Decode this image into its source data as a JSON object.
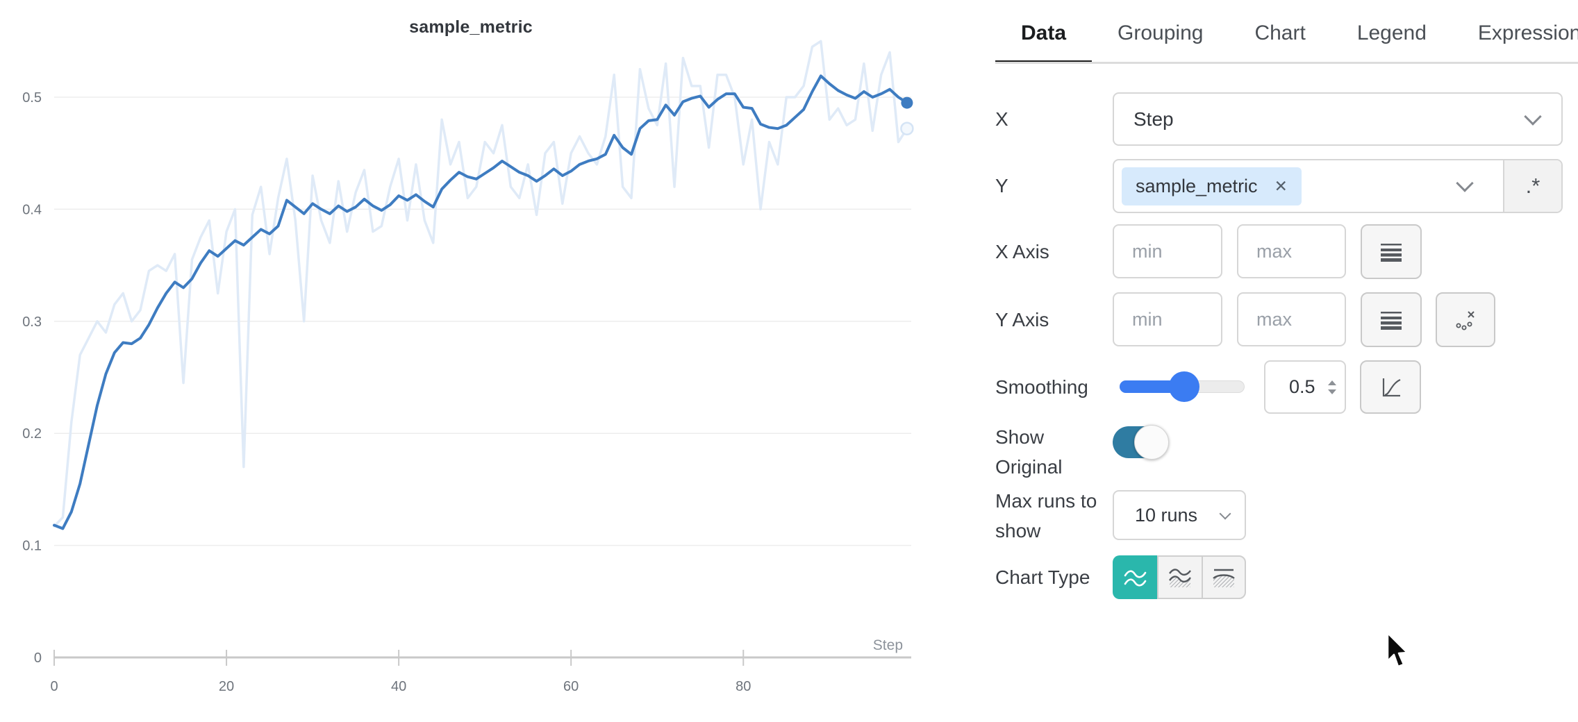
{
  "chart_data": {
    "type": "line",
    "title": "sample_metric",
    "xlabel": "Step",
    "ylabel": "",
    "x_start": 0,
    "x_step": 1,
    "x_ticks": [
      0,
      20,
      40,
      60,
      80
    ],
    "y_ticks": [
      0,
      0.1,
      0.2,
      0.3,
      0.4,
      0.5
    ],
    "xlim": [
      0,
      99
    ],
    "ylim": [
      0,
      0.562
    ],
    "grid": "horizontal",
    "legend": "none",
    "series": [
      {
        "name": "sample_metric (original)",
        "role": "original",
        "color": "#dfeaf7",
        "end_marker": "ring",
        "values": [
          0.117,
          0.125,
          0.21,
          0.27,
          0.285,
          0.3,
          0.29,
          0.315,
          0.325,
          0.3,
          0.31,
          0.345,
          0.35,
          0.345,
          0.36,
          0.245,
          0.355,
          0.375,
          0.39,
          0.325,
          0.38,
          0.4,
          0.17,
          0.395,
          0.42,
          0.36,
          0.41,
          0.445,
          0.39,
          0.3,
          0.43,
          0.39,
          0.37,
          0.425,
          0.38,
          0.415,
          0.435,
          0.38,
          0.385,
          0.42,
          0.445,
          0.39,
          0.44,
          0.39,
          0.37,
          0.48,
          0.44,
          0.46,
          0.41,
          0.42,
          0.46,
          0.45,
          0.475,
          0.42,
          0.41,
          0.44,
          0.395,
          0.45,
          0.46,
          0.405,
          0.45,
          0.465,
          0.45,
          0.44,
          0.465,
          0.52,
          0.42,
          0.41,
          0.525,
          0.49,
          0.475,
          0.53,
          0.42,
          0.535,
          0.51,
          0.51,
          0.455,
          0.52,
          0.52,
          0.5,
          0.44,
          0.48,
          0.4,
          0.46,
          0.44,
          0.5,
          0.5,
          0.51,
          0.545,
          0.55,
          0.48,
          0.49,
          0.475,
          0.48,
          0.53,
          0.47,
          0.52,
          0.54,
          0.46,
          0.472
        ]
      },
      {
        "name": "sample_metric (smoothed)",
        "role": "smoothed",
        "color": "#3e7cc1",
        "end_marker": "dot",
        "values": [
          0.118,
          0.115,
          0.13,
          0.155,
          0.19,
          0.225,
          0.253,
          0.272,
          0.281,
          0.28,
          0.285,
          0.297,
          0.312,
          0.325,
          0.335,
          0.33,
          0.338,
          0.352,
          0.363,
          0.358,
          0.365,
          0.372,
          0.368,
          0.375,
          0.382,
          0.378,
          0.385,
          0.408,
          0.402,
          0.396,
          0.405,
          0.4,
          0.396,
          0.403,
          0.398,
          0.402,
          0.409,
          0.403,
          0.399,
          0.404,
          0.412,
          0.408,
          0.413,
          0.407,
          0.402,
          0.418,
          0.426,
          0.433,
          0.429,
          0.427,
          0.432,
          0.437,
          0.443,
          0.438,
          0.433,
          0.43,
          0.425,
          0.43,
          0.436,
          0.43,
          0.434,
          0.44,
          0.443,
          0.445,
          0.449,
          0.466,
          0.455,
          0.449,
          0.472,
          0.479,
          0.48,
          0.493,
          0.484,
          0.496,
          0.499,
          0.501,
          0.491,
          0.498,
          0.503,
          0.503,
          0.491,
          0.49,
          0.476,
          0.473,
          0.472,
          0.475,
          0.482,
          0.489,
          0.505,
          0.519,
          0.512,
          0.506,
          0.502,
          0.499,
          0.505,
          0.5,
          0.503,
          0.507,
          0.5,
          0.495
        ]
      }
    ]
  },
  "panel": {
    "tabs": [
      {
        "label": "Data",
        "active": true
      },
      {
        "label": "Grouping",
        "active": false
      },
      {
        "label": "Chart",
        "active": false
      },
      {
        "label": "Legend",
        "active": false
      },
      {
        "label": "Expressions",
        "active": false
      }
    ],
    "rows": {
      "x": {
        "label": "X",
        "value": "Step"
      },
      "y": {
        "label": "Y",
        "selected": "sample_metric",
        "regex_label": ".*"
      },
      "x_axis": {
        "label": "X Axis",
        "min_placeholder": "min",
        "max_placeholder": "max"
      },
      "y_axis": {
        "label": "Y Axis",
        "min_placeholder": "min",
        "max_placeholder": "max"
      },
      "smoothing": {
        "label": "Smoothing",
        "value": "0.5"
      },
      "show_original": {
        "label": "Show Original",
        "enabled": true
      },
      "max_runs": {
        "label": "Max runs to show",
        "value": "10 runs"
      },
      "chart_type": {
        "label": "Chart Type",
        "selected": "line",
        "options": [
          "line",
          "area",
          "percentile"
        ]
      }
    },
    "icons": {
      "remove_chip": "✕"
    },
    "colors": {
      "accent_teal": "#2ab7ac",
      "slider_blue": "#3b7cf2",
      "toggle_blue": "#2f7ca2",
      "chip_blue": "#d7eafc",
      "line_blue": "#3e7cc1",
      "line_pale": "#dfeaf7"
    }
  }
}
